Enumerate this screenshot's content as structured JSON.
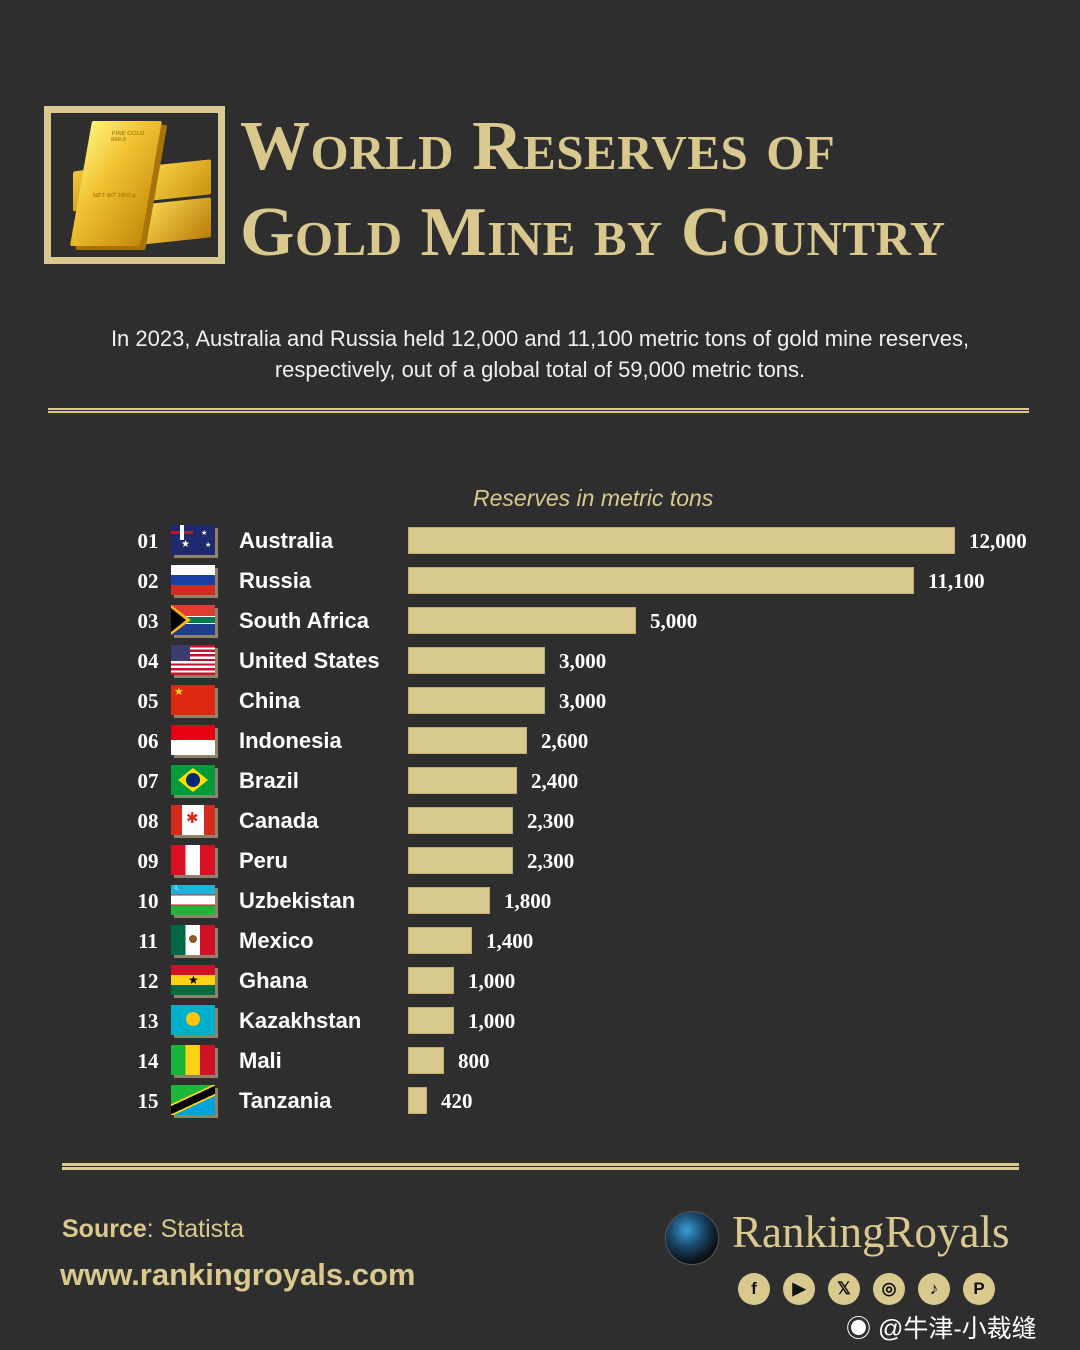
{
  "header": {
    "title_line1": "World Reserves of",
    "title_line2": "Gold Mine by Country",
    "logo": {
      "icon": "gold-bars-icon",
      "bar_text_1": "FINE GOLD 999.9",
      "bar_text_2": "NET WT 1000 g"
    }
  },
  "subtitle": "In 2023, Australia and Russia held 12,000 and 11,100 metric tons of gold mine reserves, respectively, out of a global total of 59,000 metric tons.",
  "chart_data": {
    "type": "bar",
    "orientation": "horizontal",
    "title": "World Reserves of Gold Mine by Country",
    "subtitle": "In 2023, Australia and Russia held 12,000 and 11,100 metric tons of gold mine reserves, respectively, out of a global total of 59,000 metric tons.",
    "xlabel": "Reserves in metric tons",
    "ylabel": "",
    "xlim": [
      0,
      12000
    ],
    "grid": false,
    "legend": "none",
    "bar_color": "#d9c98f",
    "categories": [
      "Australia",
      "Russia",
      "South Africa",
      "United States",
      "China",
      "Indonesia",
      "Brazil",
      "Canada",
      "Peru",
      "Uzbekistan",
      "Mexico",
      "Ghana",
      "Kazakhstan",
      "Mali",
      "Tanzania"
    ],
    "values": [
      12000,
      11100,
      5000,
      3000,
      3000,
      2600,
      2400,
      2300,
      2300,
      1800,
      1400,
      1000,
      1000,
      800,
      420
    ],
    "value_labels": [
      "12,000",
      "11,100",
      "5,000",
      "3,000",
      "3,000",
      "2,600",
      "2,400",
      "2,300",
      "2,300",
      "1,800",
      "1,400",
      "1,000",
      "1,000",
      "800",
      "420"
    ],
    "ranks": [
      "01",
      "02",
      "03",
      "04",
      "05",
      "06",
      "07",
      "08",
      "09",
      "10",
      "11",
      "12",
      "13",
      "14",
      "15"
    ]
  },
  "chart": {
    "axis_title": "Reserves in metric tons",
    "rows": [
      {
        "rank": "01",
        "country": "Australia",
        "value": "12,000",
        "flag": "flag-australia-icon"
      },
      {
        "rank": "02",
        "country": "Russia",
        "value": "11,100",
        "flag": "flag-russia-icon"
      },
      {
        "rank": "03",
        "country": "South Africa",
        "value": "5,000",
        "flag": "flag-south-africa-icon"
      },
      {
        "rank": "04",
        "country": "United States",
        "value": "3,000",
        "flag": "flag-united-states-icon"
      },
      {
        "rank": "05",
        "country": "China",
        "value": "3,000",
        "flag": "flag-china-icon"
      },
      {
        "rank": "06",
        "country": "Indonesia",
        "value": "2,600",
        "flag": "flag-indonesia-icon"
      },
      {
        "rank": "07",
        "country": "Brazil",
        "value": "2,400",
        "flag": "flag-brazil-icon"
      },
      {
        "rank": "08",
        "country": "Canada",
        "value": "2,300",
        "flag": "flag-canada-icon"
      },
      {
        "rank": "09",
        "country": "Peru",
        "value": "2,300",
        "flag": "flag-peru-icon"
      },
      {
        "rank": "10",
        "country": "Uzbekistan",
        "value": "1,800",
        "flag": "flag-uzbekistan-icon"
      },
      {
        "rank": "11",
        "country": "Mexico",
        "value": "1,400",
        "flag": "flag-mexico-icon"
      },
      {
        "rank": "12",
        "country": "Ghana",
        "value": "1,000",
        "flag": "flag-ghana-icon"
      },
      {
        "rank": "13",
        "country": "Kazakhstan",
        "value": "1,000",
        "flag": "flag-kazakhstan-icon"
      },
      {
        "rank": "14",
        "country": "Mali",
        "value": "800",
        "flag": "flag-mali-icon"
      },
      {
        "rank": "15",
        "country": "Tanzania",
        "value": "420",
        "flag": "flag-tanzania-icon"
      }
    ]
  },
  "footer": {
    "source_label": "Source",
    "source_value": ": Statista",
    "website": "www.rankingroyals.com",
    "brand_name": "RankingRoyals",
    "social": [
      {
        "name": "facebook-icon",
        "glyph": "f"
      },
      {
        "name": "youtube-icon",
        "glyph": "▶"
      },
      {
        "name": "x-icon",
        "glyph": "𝕏"
      },
      {
        "name": "instagram-icon",
        "glyph": "◎"
      },
      {
        "name": "tiktok-icon",
        "glyph": "♪"
      },
      {
        "name": "pinterest-icon",
        "glyph": "P"
      }
    ],
    "watermark": "@牛津-小裁缝"
  },
  "colors": {
    "background": "#2e2e2e",
    "accent_gold": "#d9c98f",
    "text": "#ffffff"
  }
}
